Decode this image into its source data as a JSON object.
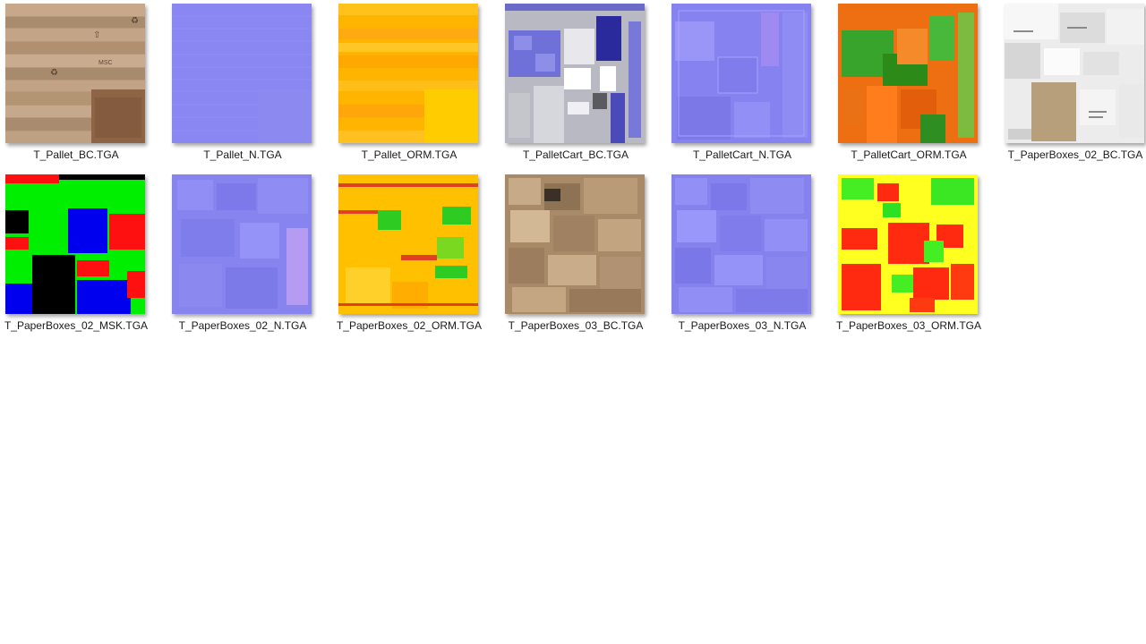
{
  "files": [
    {
      "name": "T_Pallet_BC.TGA",
      "kind": "wood"
    },
    {
      "name": "T_Pallet_N.TGA",
      "kind": "normal-flat"
    },
    {
      "name": "T_Pallet_ORM.TGA",
      "kind": "orm-yellow"
    },
    {
      "name": "T_PalletCart_BC.TGA",
      "kind": "cart-bc"
    },
    {
      "name": "T_PalletCart_N.TGA",
      "kind": "normal-detail"
    },
    {
      "name": "T_PalletCart_ORM.TGA",
      "kind": "cart-orm"
    },
    {
      "name": "T_PaperBoxes_02_BC.TGA",
      "kind": "paper-white"
    },
    {
      "name": "T_PaperBoxes_02_MSK.TGA",
      "kind": "mask"
    },
    {
      "name": "T_PaperBoxes_02_N.TGA",
      "kind": "normal-detail"
    },
    {
      "name": "T_PaperBoxes_02_ORM.TGA",
      "kind": "orm-yellow-green"
    },
    {
      "name": "T_PaperBoxes_03_BC.TGA",
      "kind": "cardboard"
    },
    {
      "name": "T_PaperBoxes_03_N.TGA",
      "kind": "normal-detail"
    },
    {
      "name": "T_PaperBoxes_03_ORM.TGA",
      "kind": "orm-mixed"
    }
  ]
}
